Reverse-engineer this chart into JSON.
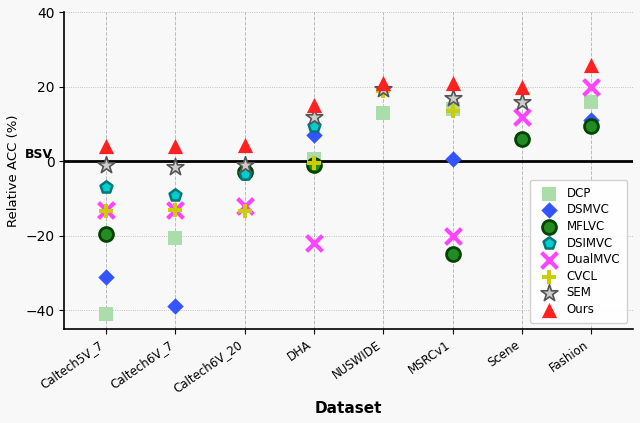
{
  "datasets": [
    "Caltech5V_7",
    "Caltech6V_7",
    "Caltech6V_20",
    "DHA",
    "NUSWIDE",
    "MSRCv1",
    "Scene",
    "Fashion"
  ],
  "methods": [
    "DCP",
    "DSMVC",
    "MFLVC",
    "DSIMVC",
    "DualMVC",
    "CVCL",
    "SEM",
    "Ours"
  ],
  "data": {
    "DCP": [
      -41.0,
      -20.5,
      null,
      0.5,
      13.0,
      14.0,
      null,
      16.0
    ],
    "DSMVC": [
      -31.0,
      -39.0,
      -2.0,
      7.0,
      null,
      0.5,
      null,
      11.0
    ],
    "MFLVC": [
      -19.5,
      null,
      -3.0,
      -1.0,
      null,
      -25.0,
      6.0,
      9.5
    ],
    "DSIMVC": [
      -7.0,
      -9.0,
      -3.5,
      9.5,
      null,
      null,
      null,
      null
    ],
    "DualMVC": [
      -13.0,
      -13.0,
      -12.0,
      -22.0,
      null,
      -20.0,
      12.0,
      20.0
    ],
    "CVCL": [
      -13.5,
      -13.0,
      -13.5,
      -0.5,
      19.0,
      13.5,
      null,
      null
    ],
    "SEM": [
      -1.0,
      -1.5,
      -1.0,
      12.0,
      19.5,
      17.0,
      16.0,
      null
    ],
    "Ours": [
      4.0,
      4.0,
      4.5,
      15.0,
      21.0,
      21.0,
      20.0,
      26.0
    ]
  },
  "facecolors": {
    "DCP": "#aaddaa",
    "DSMVC": "#3355FF",
    "MFLVC": "#228B22",
    "DSIMVC": "#00CED1",
    "DualMVC": "#FF44FF",
    "CVCL": "#CCCC00",
    "SEM": "#CCCCCC",
    "Ours": "#FF2020"
  },
  "edgecolors": {
    "DCP": "#aaddaa",
    "DSMVC": "#0000AA",
    "MFLVC": "#004400",
    "DSIMVC": "#007777",
    "DualMVC": "#AA00AA",
    "CVCL": "#888800",
    "SEM": "#555555",
    "Ours": "#BB0000"
  },
  "markers": {
    "DCP": "s",
    "DSMVC": "D",
    "MFLVC": "o",
    "DSIMVC": "p",
    "DualMVC": "x",
    "CVCL": "P",
    "SEM": "*",
    "Ours": "^"
  },
  "sizes": {
    "DCP": 100,
    "DSMVC": 70,
    "MFLVC": 100,
    "DSIMVC": 80,
    "DualMVC": 130,
    "CVCL": 100,
    "SEM": 160,
    "Ours": 120
  },
  "linewidths": {
    "DCP": 0,
    "DSMVC": 0,
    "MFLVC": 2.0,
    "DSIMVC": 1.8,
    "DualMVC": 3.0,
    "CVCL": 2.0,
    "SEM": 1.2,
    "Ours": 0
  },
  "xlabel": "Dataset",
  "ylabel": "Relative ACC (%)",
  "ylim": [
    -45,
    40
  ],
  "yticks": [
    -40,
    -20,
    0,
    20,
    40
  ],
  "bsv_label": "BSV",
  "bg_color": "#F8F8F8",
  "figsize": [
    6.4,
    4.23
  ],
  "dpi": 100
}
